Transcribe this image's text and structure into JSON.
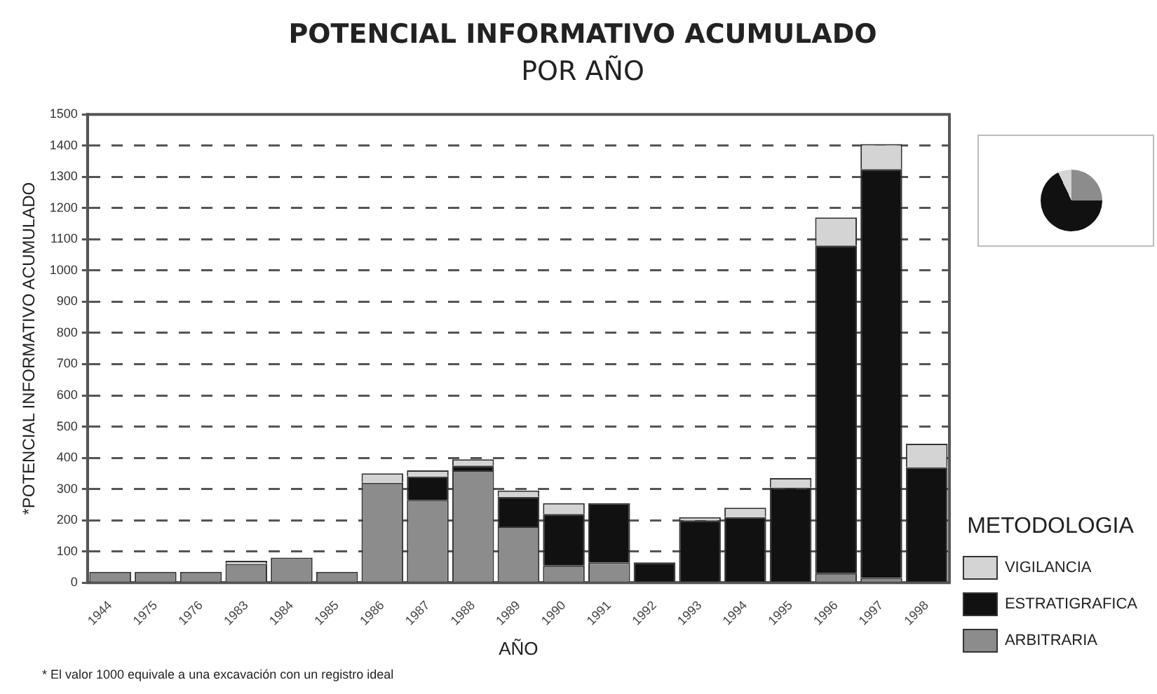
{
  "chart_data": {
    "type": "bar",
    "title": "POTENCIAL INFORMATIVO ACUMULADO",
    "subtitle": "POR AÑO",
    "xlabel": "AÑO",
    "ylabel": "*POTENCIAL INFORMATIVO ACUMULADO",
    "legend_title": "METODOLOGIA",
    "categories": [
      "1944",
      "1975",
      "1976",
      "1983",
      "1984",
      "1985",
      "1986",
      "1987",
      "1988",
      "1989",
      "1990",
      "1991",
      "1992",
      "1993",
      "1994",
      "1995",
      "1996",
      "1997",
      "1998"
    ],
    "stacked": true,
    "series": [
      {
        "name": "ARBITRARIA",
        "color": "#8c8c8c",
        "values": [
          35,
          35,
          35,
          60,
          80,
          35,
          320,
          265,
          360,
          180,
          55,
          65,
          0,
          0,
          0,
          0,
          30,
          15,
          0
        ]
      },
      {
        "name": "ESTRATIGRAFICA",
        "color": "#111111",
        "values": [
          0,
          0,
          0,
          0,
          0,
          0,
          0,
          75,
          15,
          95,
          165,
          190,
          65,
          200,
          210,
          305,
          1050,
          1310,
          370
        ]
      },
      {
        "name": "VIGILANCIA",
        "color": "#d4d4d4",
        "values": [
          0,
          0,
          0,
          10,
          0,
          0,
          30,
          20,
          20,
          20,
          35,
          0,
          0,
          10,
          30,
          30,
          90,
          80,
          75
        ]
      }
    ],
    "ylim": [
      0,
      1500
    ],
    "yticks": [
      0,
      100,
      200,
      300,
      400,
      500,
      600,
      700,
      800,
      900,
      1000,
      1100,
      1200,
      1300,
      1400,
      1500
    ],
    "grid": "y",
    "legend": "bottom right",
    "annotations": [
      "* El valor 1000 equivale a una excavación con un registro ideal"
    ]
  }
}
